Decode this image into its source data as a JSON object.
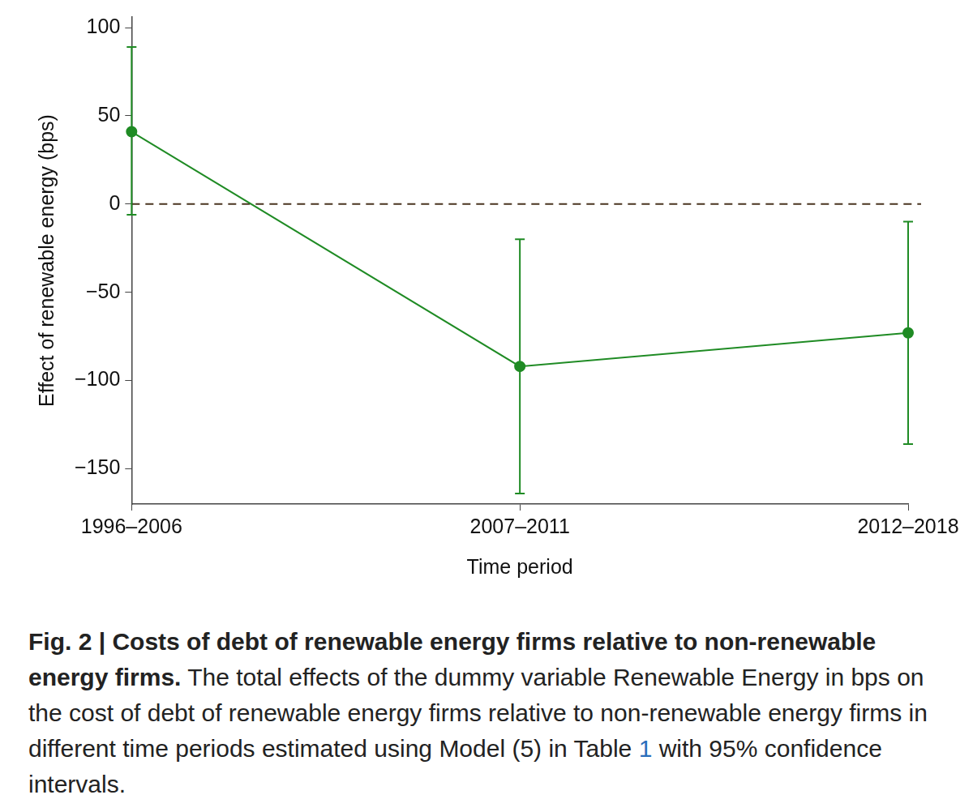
{
  "chart_data": {
    "type": "line",
    "categories": [
      "1996–2006",
      "2007–2011",
      "2012–2018"
    ],
    "values": [
      41,
      -92,
      -73
    ],
    "error_low": [
      -6,
      -164,
      -136
    ],
    "error_high": [
      89,
      -20,
      -10
    ],
    "color": "#1f8b24",
    "marker": "circle",
    "line_style": "solid",
    "x_label": "Time period",
    "y_label": "Effect of renewable energy (bps)",
    "ylim": [
      -170,
      106
    ],
    "yticks": [
      {
        "value": -150,
        "label": "−150"
      },
      {
        "value": -100,
        "label": "−100"
      },
      {
        "value": -50,
        "label": "−50"
      },
      0,
      50,
      100
    ],
    "grid": false,
    "reference_line": {
      "value": 0,
      "line_style": "dashed"
    },
    "caption_title": "Fig. 2 | Costs of debt of renewable energy firms relative to non-renewable energy firms.",
    "caption_parts": [
      {
        "text": "The total effects of the dummy variable Renewable Energy in bps on the cost of debt of renewable energy firms relative to non-renewable energy firms in different time periods estimated using Model (5) in Table "
      },
      {
        "text": "1",
        "color": "#2a6ebb"
      },
      {
        "text": " with 95% confidence intervals."
      }
    ]
  }
}
